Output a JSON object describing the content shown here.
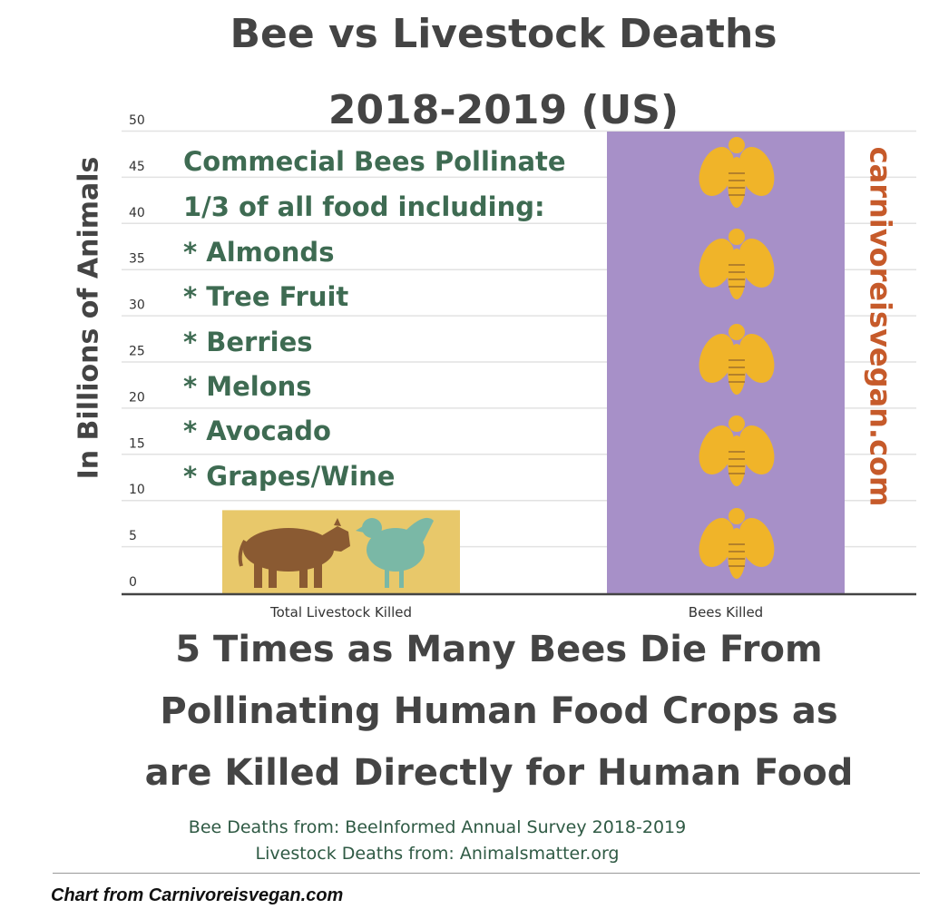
{
  "chart_data": {
    "type": "bar",
    "title": "Bee vs Livestock Deaths",
    "subtitle": "2018-2019 (US)",
    "ylabel": "In Billions of Animals",
    "categories": [
      "Total Livestock Killed",
      "Bees Killed"
    ],
    "values": [
      9,
      50
    ],
    "ylim": [
      0,
      50
    ],
    "yticks": [
      0,
      5,
      10,
      15,
      20,
      25,
      30,
      35,
      40,
      45,
      50
    ],
    "grid": true,
    "bar_colors": [
      "#e8c86a",
      "#a790c8"
    ],
    "annotation_lines": [
      "Commecial Bees Pollinate",
      "1/3 of all food including:",
      "* Almonds",
      "* Tree Fruit",
      "* Berries",
      "* Melons",
      "* Avocado",
      "* Grapes/Wine"
    ]
  },
  "watermark": "carnivoreisvegan.com",
  "headline": [
    "5 Times as Many Bees Die From",
    "Pollinating Human Food Crops as",
    "are Killed Directly for Human Food"
  ],
  "sources": [
    "Bee Deaths from:  BeeInformed Annual Survey 2018-2019",
    "Livestock Deaths from: Animalsmatter.org"
  ],
  "credit": "Chart from Carnivoreisvegan.com",
  "icons": [
    "cow-icon",
    "chicken-icon",
    "bee-icon"
  ],
  "colors": {
    "cow": "#8a5a32",
    "chicken": "#7ab8a6",
    "bee": "#f0b429",
    "annotation": "#3e6b52",
    "watermark": "#c65a2a"
  }
}
